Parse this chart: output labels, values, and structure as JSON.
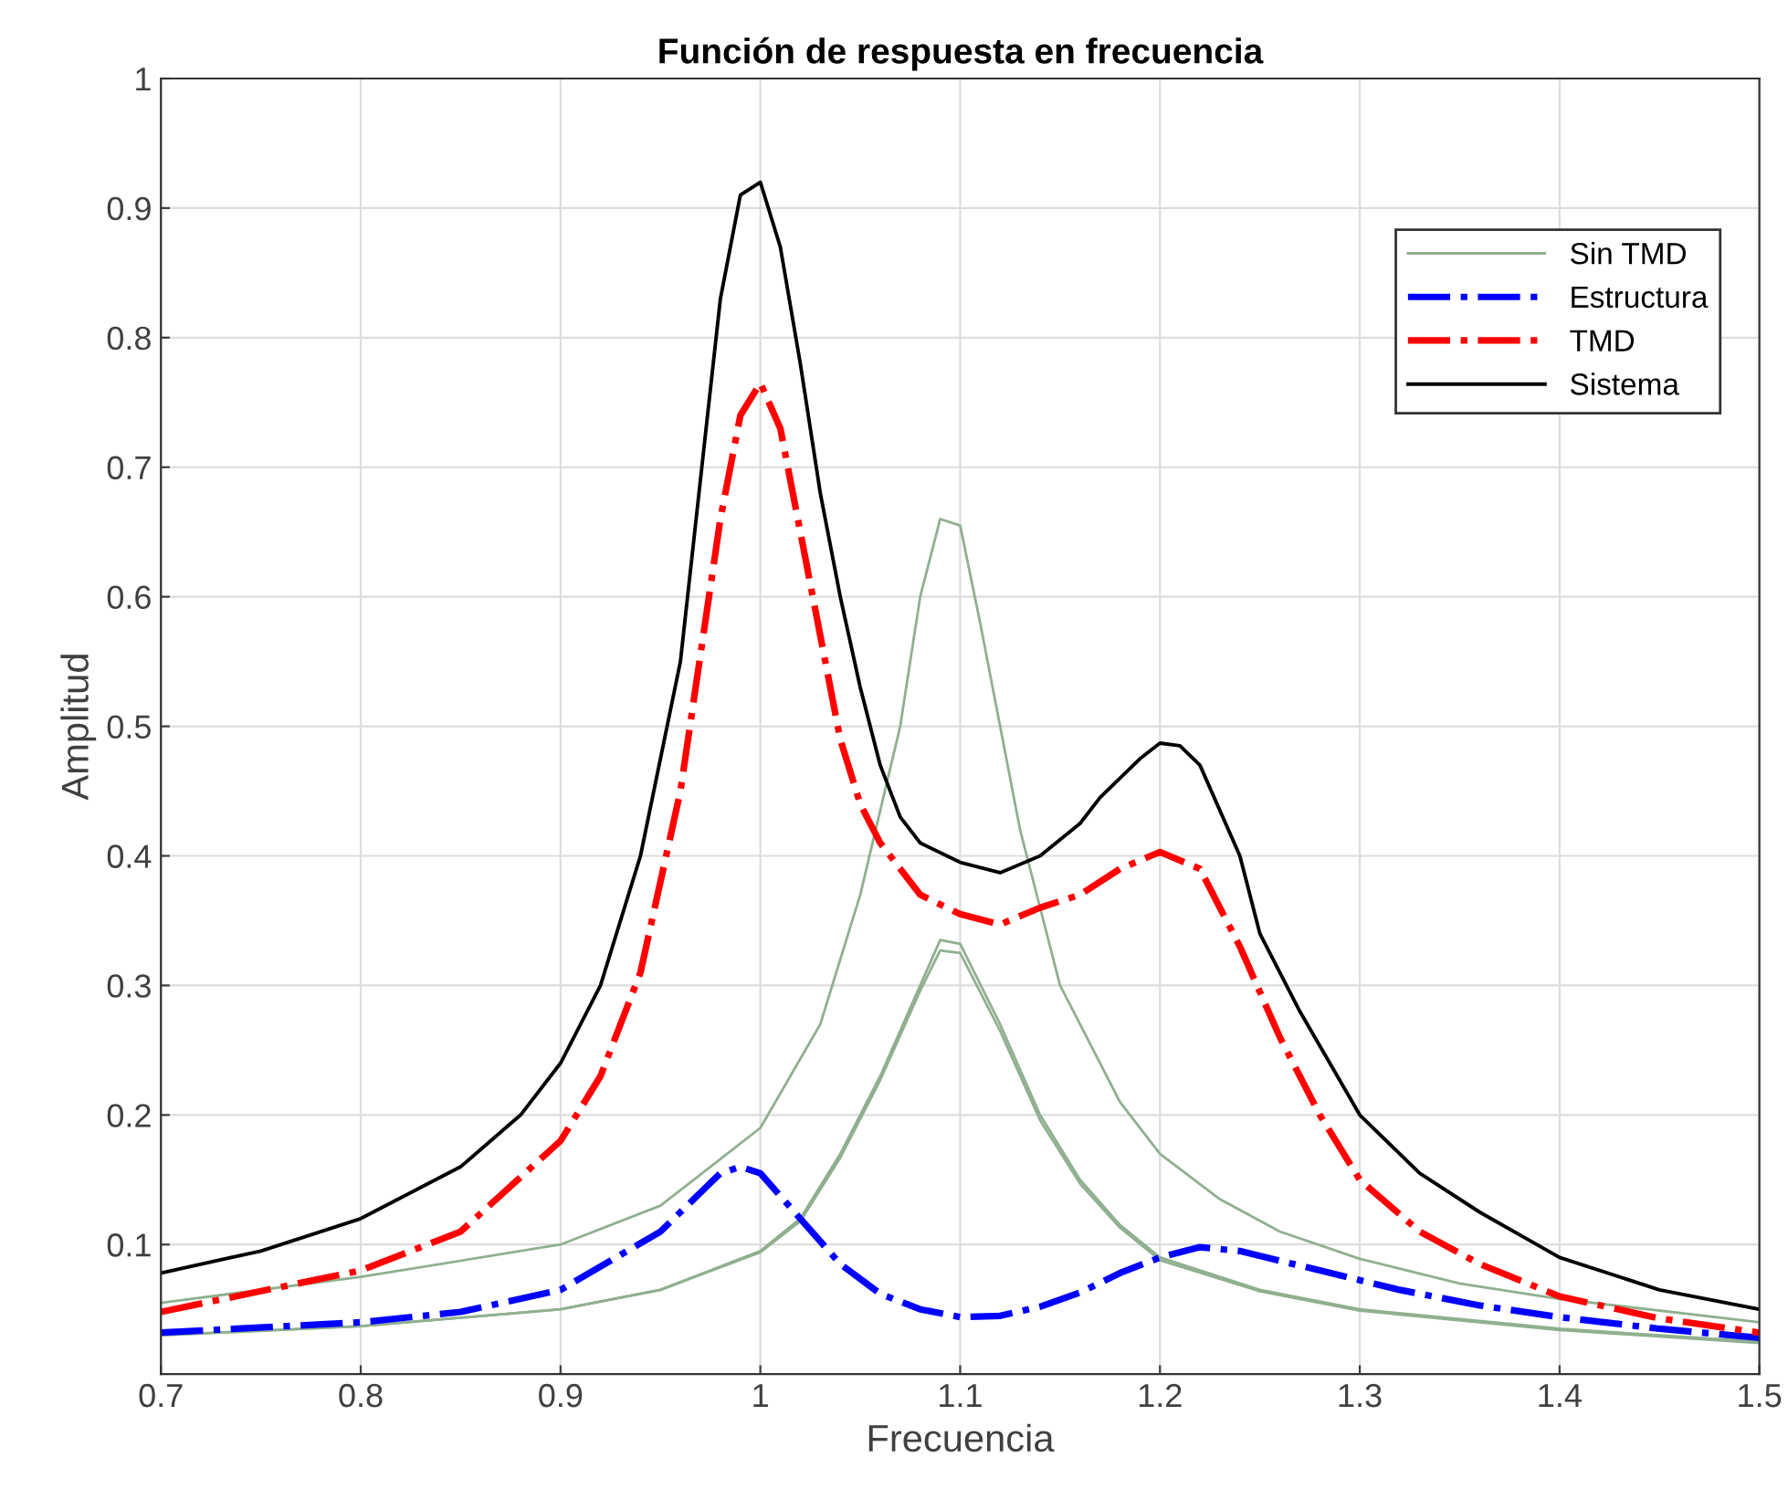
{
  "chart_data": {
    "type": "line",
    "title": "Función de respuesta en frecuencia",
    "xlabel": "Frecuencia",
    "ylabel": "Amplitud",
    "xlim": [
      0.7,
      1.5
    ],
    "xticks": [
      0.7,
      0.8,
      0.9,
      1,
      1.1,
      1.2,
      1.3,
      1.4,
      1.5
    ],
    "ylim": [
      0,
      1
    ],
    "yticks": [
      0.1,
      0.2,
      0.3,
      0.4,
      0.5,
      0.6,
      0.7,
      0.8,
      0.9,
      1
    ],
    "grid": true,
    "legend": "top right",
    "marker": "none",
    "series": [
      {
        "name": "Sin TMD",
        "color": "#8fb08f",
        "line_style": "solid",
        "x": [
          0.7,
          0.8,
          0.9,
          0.95,
          1.0,
          1.03,
          1.05,
          1.07,
          1.08,
          1.09,
          1.1,
          1.11,
          1.12,
          1.13,
          1.14,
          1.15,
          1.16,
          1.18,
          1.2,
          1.23,
          1.26,
          1.3,
          1.35,
          1.4,
          1.5
        ],
        "values": [
          0.055,
          0.075,
          0.1,
          0.13,
          0.19,
          0.27,
          0.37,
          0.5,
          0.6,
          0.66,
          0.655,
          0.58,
          0.5,
          0.42,
          0.36,
          0.3,
          0.27,
          0.21,
          0.17,
          0.135,
          0.11,
          0.089,
          0.07,
          0.058,
          0.04
        ]
      },
      {
        "color": "#8fb08f",
        "line_style": "solid",
        "x": [
          0.7,
          0.8,
          0.9,
          0.95,
          1.0,
          1.02,
          1.04,
          1.06,
          1.08,
          1.09,
          1.1,
          1.12,
          1.14,
          1.16,
          1.18,
          1.2,
          1.25,
          1.3,
          1.4,
          1.5
        ],
        "values": [
          0.03,
          0.037,
          0.05,
          0.065,
          0.095,
          0.12,
          0.17,
          0.23,
          0.3,
          0.335,
          0.332,
          0.27,
          0.2,
          0.15,
          0.115,
          0.09,
          0.065,
          0.05,
          0.035,
          0.025
        ]
      },
      {
        "color": "#8fb08f",
        "line_style": "solid",
        "x": [
          0.7,
          0.8,
          0.9,
          0.95,
          1.0,
          1.02,
          1.04,
          1.06,
          1.08,
          1.09,
          1.1,
          1.12,
          1.14,
          1.16,
          1.18,
          1.2,
          1.25,
          1.3,
          1.4,
          1.5
        ],
        "values": [
          0.03,
          0.037,
          0.05,
          0.065,
          0.094,
          0.118,
          0.167,
          0.227,
          0.296,
          0.327,
          0.325,
          0.265,
          0.196,
          0.147,
          0.113,
          0.088,
          0.064,
          0.049,
          0.034,
          0.024
        ]
      },
      {
        "name": "Estructura",
        "color": "#0000ff",
        "line_style": "dashdot",
        "x": [
          0.7,
          0.8,
          0.85,
          0.9,
          0.95,
          0.98,
          0.99,
          1.0,
          1.02,
          1.04,
          1.06,
          1.08,
          1.1,
          1.12,
          1.14,
          1.16,
          1.18,
          1.2,
          1.22,
          1.24,
          1.28,
          1.32,
          1.36,
          1.4,
          1.45,
          1.5
        ],
        "values": [
          0.032,
          0.04,
          0.048,
          0.065,
          0.11,
          0.155,
          0.16,
          0.155,
          0.12,
          0.085,
          0.062,
          0.05,
          0.044,
          0.045,
          0.052,
          0.063,
          0.078,
          0.09,
          0.098,
          0.095,
          0.08,
          0.065,
          0.053,
          0.044,
          0.035,
          0.028
        ]
      },
      {
        "name": "TMD",
        "color": "#ff0000",
        "line_style": "dashdot",
        "x": [
          0.7,
          0.8,
          0.85,
          0.9,
          0.92,
          0.94,
          0.96,
          0.98,
          0.99,
          1.0,
          1.01,
          1.02,
          1.03,
          1.04,
          1.05,
          1.06,
          1.08,
          1.1,
          1.12,
          1.14,
          1.16,
          1.18,
          1.2,
          1.22,
          1.24,
          1.26,
          1.28,
          1.3,
          1.33,
          1.36,
          1.4,
          1.45,
          1.5
        ],
        "values": [
          0.048,
          0.08,
          0.11,
          0.18,
          0.23,
          0.31,
          0.45,
          0.66,
          0.74,
          0.765,
          0.73,
          0.65,
          0.57,
          0.49,
          0.44,
          0.41,
          0.37,
          0.355,
          0.347,
          0.36,
          0.37,
          0.39,
          0.403,
          0.39,
          0.33,
          0.26,
          0.2,
          0.15,
          0.11,
          0.085,
          0.06,
          0.043,
          0.032
        ]
      },
      {
        "name": "Sistema",
        "color": "#000000",
        "line_style": "solid",
        "x": [
          0.7,
          0.75,
          0.8,
          0.85,
          0.88,
          0.9,
          0.92,
          0.94,
          0.96,
          0.98,
          0.99,
          1.0,
          1.01,
          1.02,
          1.03,
          1.04,
          1.05,
          1.06,
          1.07,
          1.08,
          1.1,
          1.12,
          1.14,
          1.16,
          1.17,
          1.19,
          1.2,
          1.21,
          1.22,
          1.24,
          1.25,
          1.27,
          1.3,
          1.33,
          1.36,
          1.4,
          1.45,
          1.5
        ],
        "values": [
          0.078,
          0.095,
          0.12,
          0.16,
          0.2,
          0.24,
          0.3,
          0.4,
          0.55,
          0.83,
          0.91,
          0.92,
          0.87,
          0.78,
          0.68,
          0.6,
          0.53,
          0.47,
          0.43,
          0.41,
          0.395,
          0.387,
          0.4,
          0.425,
          0.445,
          0.475,
          0.487,
          0.485,
          0.47,
          0.4,
          0.34,
          0.28,
          0.2,
          0.155,
          0.125,
          0.09,
          0.065,
          0.05
        ]
      }
    ]
  }
}
